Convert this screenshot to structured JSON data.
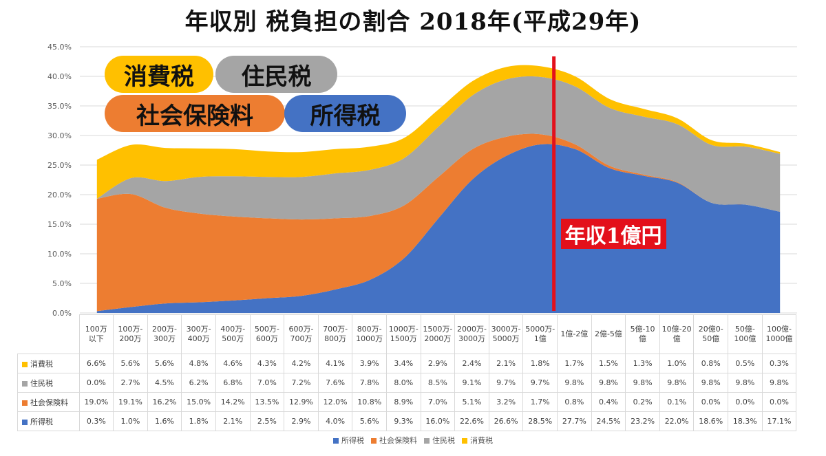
{
  "title": "年収別 税負担の割合 2018年(平成29年)",
  "labels": {
    "consumption": "消費税",
    "resident": "住民税",
    "social": "社会保険料",
    "income": "所得税",
    "marker": "年収1億円"
  },
  "colors": {
    "income_tax": "#4472c4",
    "social_insurance": "#ed7d31",
    "resident_tax": "#a5a5a5",
    "consumption_tax": "#ffc000",
    "marker_line": "#e3101b"
  },
  "chart_data": {
    "type": "area",
    "stacked": true,
    "title": "年収別 税負担の割合 2018年(平成29年)",
    "categories": [
      [
        "100万",
        "以下"
      ],
      [
        "100万-",
        "200万"
      ],
      [
        "200万-",
        "300万"
      ],
      [
        "300万-",
        "400万"
      ],
      [
        "400万-",
        "500万"
      ],
      [
        "500万-",
        "600万"
      ],
      [
        "600万-",
        "700万"
      ],
      [
        "700万-",
        "800万"
      ],
      [
        "800万-",
        "1000万"
      ],
      [
        "1000万-",
        "1500万"
      ],
      [
        "1500万-",
        "2000万"
      ],
      [
        "2000万-",
        "3000万"
      ],
      [
        "3000万-",
        "5000万"
      ],
      [
        "5000万-",
        "1億"
      ],
      [
        "1億-2億"
      ],
      [
        "2億-5億"
      ],
      [
        "5億-10",
        "億"
      ],
      [
        "10億-20",
        "億"
      ],
      [
        "20億0-",
        "50億"
      ],
      [
        "50億-",
        "100億"
      ],
      [
        "100億-",
        "1000億"
      ]
    ],
    "series": [
      {
        "name": "所得税",
        "color": "#4472c4",
        "values": [
          0.3,
          1.0,
          1.6,
          1.8,
          2.1,
          2.5,
          2.9,
          4.0,
          5.6,
          9.3,
          16.0,
          22.6,
          26.6,
          28.5,
          27.7,
          24.5,
          23.2,
          22.0,
          18.6,
          18.3,
          17.1
        ],
        "labels": [
          "0.3%",
          "1.0%",
          "1.6%",
          "1.8%",
          "2.1%",
          "2.5%",
          "2.9%",
          "4.0%",
          "5.6%",
          "9.3%",
          "16.0%",
          "22.6%",
          "26.6%",
          "28.5%",
          "27.7%",
          "24.5%",
          "23.2%",
          "22.0%",
          "18.6%",
          "18.3%",
          "17.1%"
        ]
      },
      {
        "name": "社会保険料",
        "color": "#ed7d31",
        "values": [
          19.0,
          19.1,
          16.2,
          15.0,
          14.2,
          13.5,
          12.9,
          12.0,
          10.8,
          8.9,
          7.0,
          5.1,
          3.2,
          1.7,
          0.8,
          0.4,
          0.2,
          0.1,
          0.0,
          0.0,
          0.0
        ],
        "labels": [
          "19.0%",
          "19.1%",
          "16.2%",
          "15.0%",
          "14.2%",
          "13.5%",
          "12.9%",
          "12.0%",
          "10.8%",
          "8.9%",
          "7.0%",
          "5.1%",
          "3.2%",
          "1.7%",
          "0.8%",
          "0.4%",
          "0.2%",
          "0.1%",
          "0.0%",
          "0.0%",
          "0.0%"
        ]
      },
      {
        "name": "住民税",
        "color": "#a5a5a5",
        "values": [
          0.0,
          2.7,
          4.5,
          6.2,
          6.8,
          7.0,
          7.2,
          7.6,
          7.8,
          8.0,
          8.5,
          9.1,
          9.7,
          9.7,
          9.8,
          9.8,
          9.8,
          9.8,
          9.8,
          9.8,
          9.8
        ],
        "labels": [
          "0.0%",
          "2.7%",
          "4.5%",
          "6.2%",
          "6.8%",
          "7.0%",
          "7.2%",
          "7.6%",
          "7.8%",
          "8.0%",
          "8.5%",
          "9.1%",
          "9.7%",
          "9.7%",
          "9.8%",
          "9.8%",
          "9.8%",
          "9.8%",
          "9.8%",
          "9.8%",
          "9.8%"
        ]
      },
      {
        "name": "消費税",
        "color": "#ffc000",
        "values": [
          6.6,
          5.6,
          5.6,
          4.8,
          4.6,
          4.3,
          4.2,
          4.1,
          3.9,
          3.4,
          2.9,
          2.4,
          2.1,
          1.8,
          1.7,
          1.5,
          1.3,
          1.0,
          0.8,
          0.5,
          0.3
        ],
        "labels": [
          "6.6%",
          "5.6%",
          "5.6%",
          "4.8%",
          "4.6%",
          "4.3%",
          "4.2%",
          "4.1%",
          "3.9%",
          "3.4%",
          "2.9%",
          "2.4%",
          "2.1%",
          "1.8%",
          "1.7%",
          "1.5%",
          "1.3%",
          "1.0%",
          "0.8%",
          "0.5%",
          "0.3%"
        ]
      }
    ],
    "table_row_order": [
      "消費税",
      "住民税",
      "社会保険料",
      "所得税"
    ],
    "legend_order": [
      "所得税",
      "社会保険料",
      "住民税",
      "消費税"
    ],
    "ylim": [
      0,
      45
    ],
    "yticks": [
      "0.0%",
      "5.0%",
      "10.0%",
      "15.0%",
      "20.0%",
      "25.0%",
      "30.0%",
      "35.0%",
      "40.0%",
      "45.0%"
    ],
    "grid": true,
    "legend": "bottom",
    "marker_line_after": "5000万-1億"
  }
}
